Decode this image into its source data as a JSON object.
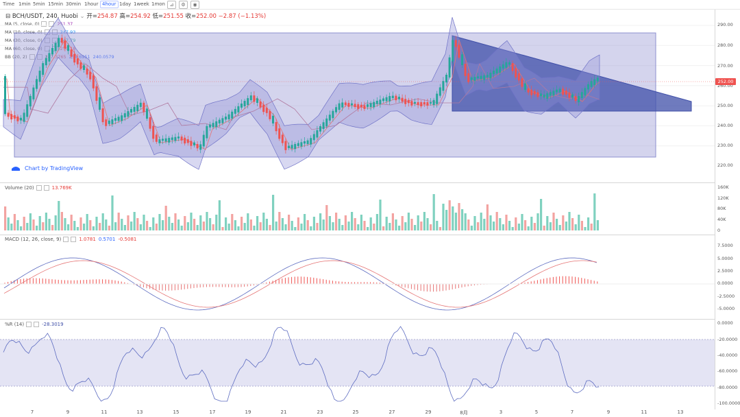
{
  "toolbar": {
    "intervals": [
      "Time",
      "1min",
      "5min",
      "15min",
      "30min",
      "1hour",
      "4hour",
      "1day",
      "1week",
      "1mon"
    ],
    "active": "4hour",
    "icons": [
      "indicator-icon",
      "settings-icon",
      "screenshot-icon"
    ]
  },
  "header": {
    "symbol": "BCH/USDT, 240, Huobi",
    "open_label": "开=",
    "open": "254.87",
    "high_label": "高=",
    "high": "254.92",
    "low_label": "低=",
    "low": "251.55",
    "close_label": "收=",
    "close": "252.00",
    "change": "−2.87 (−1.13%)"
  },
  "indicators": [
    {
      "name": "MA (5, close, 0)",
      "value": "251.37",
      "color": "#9c27b0"
    },
    {
      "name": "MA (10, close, 0)",
      "value": "247.93",
      "color": "#2196f3"
    },
    {
      "name": "MA (30, close, 0)",
      "value": "247.79",
      "color": "#26a69a"
    },
    {
      "name": "MA (60, close, 0)",
      "value": "250.18",
      "color": "#e53935"
    },
    {
      "name": "BB (20, 2)",
      "values": [
        "247.3765",
        "254.6951",
        "240.0579"
      ],
      "colors": [
        "#e53935",
        "#2962ff",
        "#2962ff"
      ]
    }
  ],
  "branding": "Chart by TradingView",
  "price_axis": [
    "290.00",
    "280.00",
    "270.00",
    "260.00",
    "250.00",
    "240.00",
    "230.00",
    "220.00",
    "210.00"
  ],
  "current_price": "252.00",
  "volume": {
    "label": "Volume (20)",
    "value": "13.769K",
    "axis": [
      "160K",
      "120K",
      "80K",
      "40K",
      "0"
    ]
  },
  "macd": {
    "label": "MACD (12, 26, close, 9)",
    "values": [
      "1.0781",
      "0.5701",
      "-0.5081"
    ],
    "colors": [
      "#e53935",
      "#2962ff",
      "#e53935"
    ],
    "axis": [
      "7.5000",
      "5.0000",
      "2.5000",
      "0.0000",
      "-2.5000",
      "-5.0000"
    ]
  },
  "wr": {
    "label": "%R (14)",
    "value": "-28.3019",
    "axis": [
      "0.0000",
      "-20.0000",
      "-40.0000",
      "-60.0000",
      "-80.0000",
      "-100.0000"
    ]
  },
  "time_axis": [
    "7",
    "9",
    "11",
    "13",
    "15",
    "17",
    "19",
    "21",
    "23",
    "25",
    "27",
    "29",
    "8月",
    "3",
    "5",
    "7",
    "9",
    "11",
    "13"
  ],
  "colors": {
    "up": "#26a69a",
    "down": "#ef5350",
    "box": "#9fa0d8",
    "triangle": "#3f4fa8",
    "accent": "#2962ff"
  }
}
